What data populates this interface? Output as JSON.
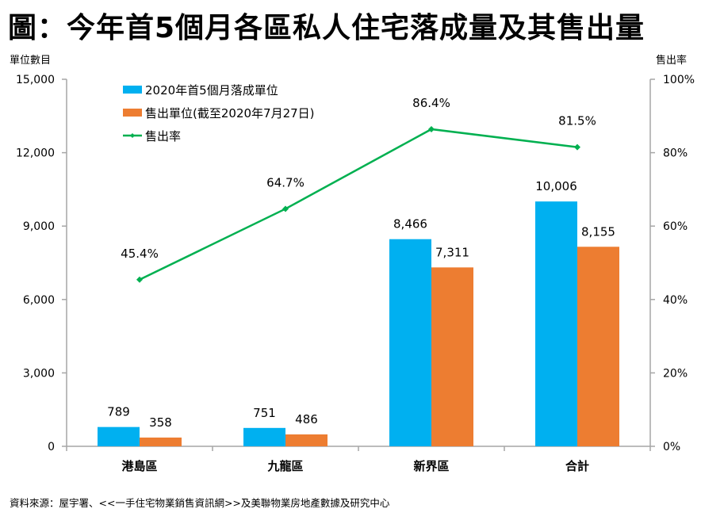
{
  "title": "圖：今年首5個月各區私人住宅落成量及其售出量",
  "source": "資料來源：屋宇署、<<一手住宅物業銷售資訊網>>及美聯物業房地產數據及研究中心",
  "chart_data": {
    "type": "bar",
    "title": "圖：今年首5個月各區私人住宅落成量及其售出量",
    "categories": [
      "港島區",
      "九龍區",
      "新界區",
      "合計"
    ],
    "series": [
      {
        "name": "2020年首5個月落成單位",
        "type": "bar",
        "axis": "left",
        "color": "#00b0f0",
        "values": [
          789,
          751,
          8466,
          10006
        ],
        "labels": [
          "789",
          "751",
          "8,466",
          "10,006"
        ]
      },
      {
        "name": "售出單位(截至2020年7月27日)",
        "type": "bar",
        "axis": "left",
        "color": "#ed7d31",
        "values": [
          358,
          486,
          7311,
          8155
        ],
        "labels": [
          "358",
          "486",
          "7,311",
          "8,155"
        ]
      },
      {
        "name": "售出率",
        "type": "line",
        "axis": "right",
        "color": "#00b050",
        "values": [
          45.4,
          64.7,
          86.4,
          81.5
        ],
        "labels": [
          "45.4%",
          "64.7%",
          "86.4%",
          "81.5%"
        ]
      }
    ],
    "ylabel": "單位數目",
    "ylim": [
      0,
      15000
    ],
    "yticks": [
      0,
      3000,
      6000,
      9000,
      12000,
      15000
    ],
    "ytick_labels": [
      "0",
      "3,000",
      "6,000",
      "9,000",
      "12,000",
      "15,000"
    ],
    "y2label": "售出率",
    "y2lim": [
      0,
      100
    ],
    "y2ticks": [
      0,
      20,
      40,
      60,
      80,
      100
    ],
    "y2tick_labels": [
      "0%",
      "20%",
      "40%",
      "60%",
      "80%",
      "100%"
    ],
    "grid": false,
    "legend_position": "top-left"
  }
}
